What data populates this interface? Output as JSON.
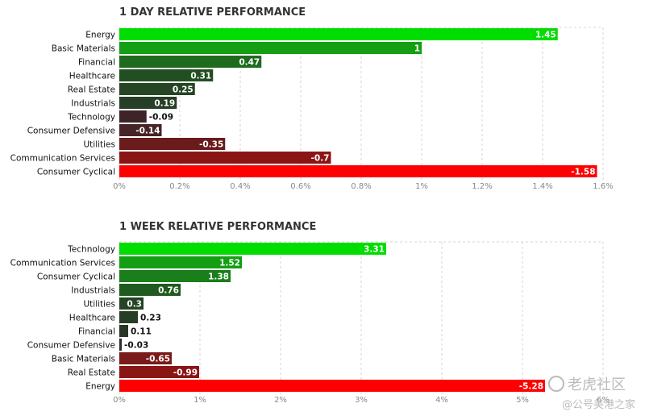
{
  "chart_data": [
    {
      "type": "bar",
      "orientation": "horizontal",
      "title": "1 DAY RELATIVE PERFORMANCE",
      "categories": [
        "Energy",
        "Basic Materials",
        "Financial",
        "Healthcare",
        "Real Estate",
        "Industrials",
        "Technology",
        "Consumer Defensive",
        "Utilities",
        "Communication Services",
        "Consumer Cyclical"
      ],
      "values": [
        1.45,
        1,
        0.47,
        0.31,
        0.25,
        0.19,
        -0.09,
        -0.14,
        -0.35,
        -0.7,
        -1.58
      ],
      "value_labels": [
        "1.45",
        "1",
        "0.47",
        "0.31",
        "0.25",
        "0.19",
        "-0.09",
        "-0.14",
        "-0.35",
        "-0.7",
        "-1.58"
      ],
      "colors": [
        "#00dd00",
        "#139e13",
        "#1e6b1e",
        "#224f22",
        "#254525",
        "#273e27",
        "#3d2428",
        "#472426",
        "#6a1c1c",
        "#8a1515",
        "#ff0000"
      ],
      "bar_length": "absolute value",
      "xlim": [
        0,
        1.6
      ],
      "xticks": [
        "0%",
        "0.2%",
        "0.4%",
        "0.6%",
        "0.8%",
        "1%",
        "1.2%",
        "1.4%",
        "1.6%"
      ],
      "grid": true
    },
    {
      "type": "bar",
      "orientation": "horizontal",
      "title": "1 WEEK RELATIVE PERFORMANCE",
      "categories": [
        "Technology",
        "Communication Services",
        "Consumer Cyclical",
        "Industrials",
        "Utilities",
        "Healthcare",
        "Financial",
        "Consumer Defensive",
        "Basic Materials",
        "Real Estate",
        "Energy"
      ],
      "values": [
        3.31,
        1.52,
        1.38,
        0.76,
        0.3,
        0.23,
        0.11,
        -0.03,
        -0.65,
        -0.99,
        -5.28
      ],
      "value_labels": [
        "3.31",
        "1.52",
        "1.38",
        "0.76",
        "0.3",
        "0.23",
        "0.11",
        "-0.03",
        "-0.65",
        "-0.99",
        "-5.28"
      ],
      "colors": [
        "#00dd00",
        "#149e14",
        "#1a7e1a",
        "#1f5a1f",
        "#244424",
        "#263e26",
        "#283628",
        "#332a2a",
        "#7a1a1a",
        "#8a1515",
        "#ff0000"
      ],
      "bar_length": "absolute value",
      "xlim": [
        0,
        6
      ],
      "xticks": [
        "0%",
        "1%",
        "2%",
        "3%",
        "4%",
        "5%",
        "6%"
      ],
      "grid": true
    }
  ],
  "watermark": {
    "line1": "老虎社区",
    "line2": "@公号美港之家"
  }
}
